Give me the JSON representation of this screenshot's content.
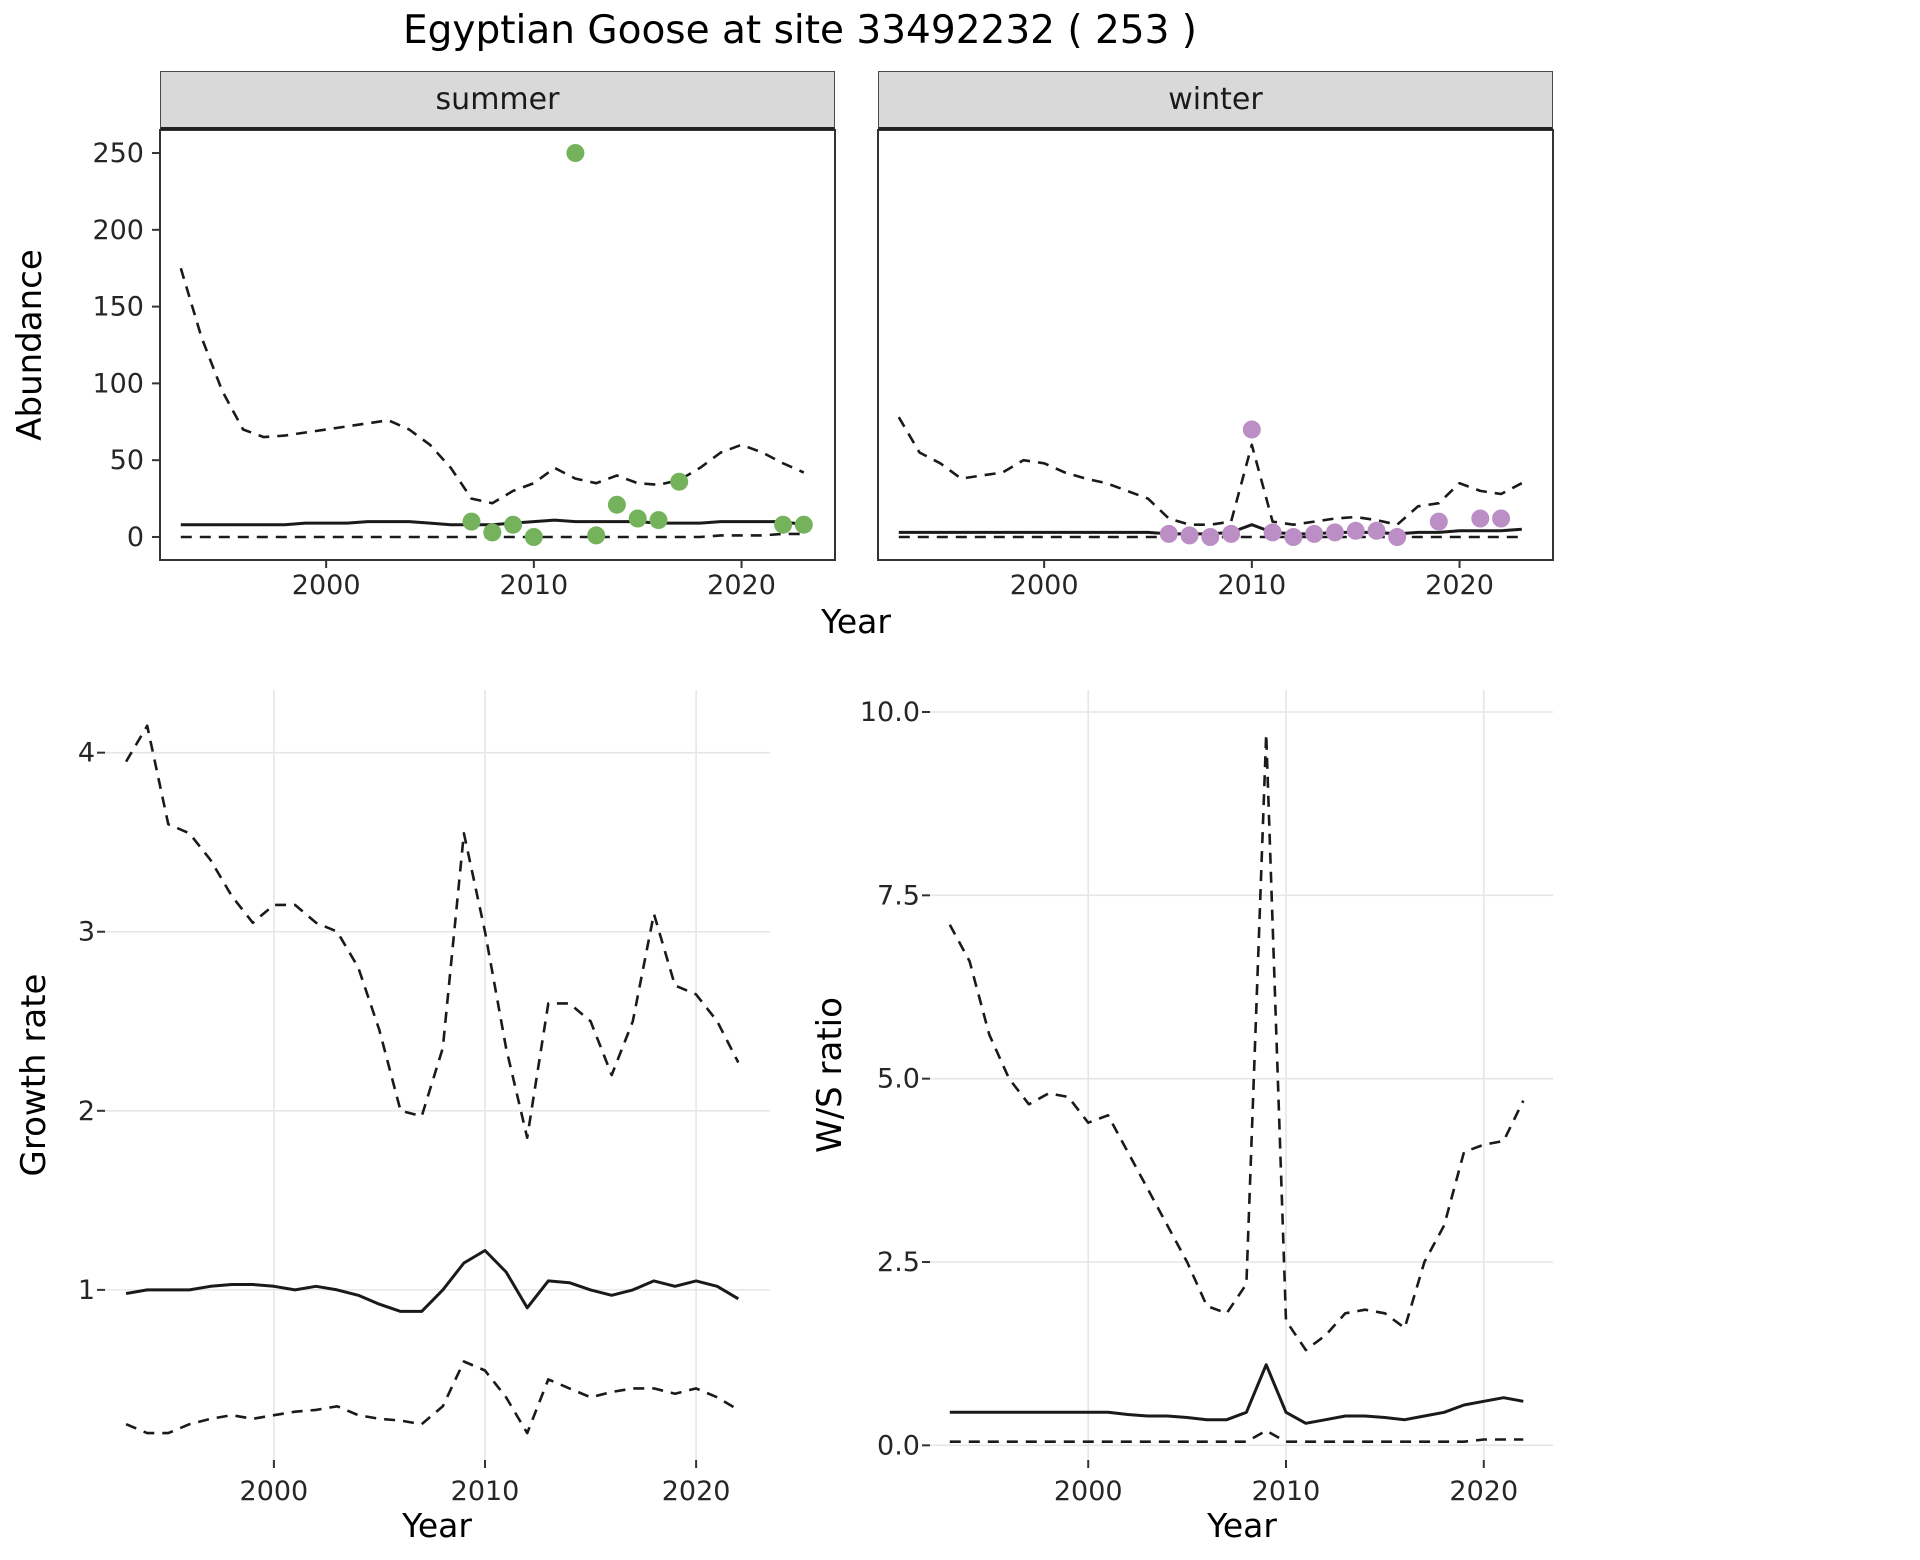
{
  "labels": {
    "title": "Egyptian Goose at site 33492232 ( 253 )",
    "abundance_ylab": "Abundance",
    "top_xlab": "Year",
    "growth_ylab": "Growth rate",
    "growth_xlab": "Year",
    "ws_ylab": "W/S ratio",
    "ws_xlab": "Year",
    "facet_summer": "summer",
    "facet_winter": "winter"
  },
  "colors": {
    "summer_points": "#74B35C",
    "winter_points": "#BB8FC6",
    "line": "#1A1A1A",
    "strip_bg": "#D9D9D9",
    "grid": "#E6E6E6"
  },
  "chart_data": [
    {
      "id": "summer_abundance",
      "type": "line",
      "facet": "summer",
      "title": "Egyptian Goose at site 33492232 ( 253 )",
      "xlabel": "Year",
      "ylabel": "Abundance",
      "xlim": [
        1992,
        2024.5
      ],
      "ylim": [
        -15,
        265
      ],
      "xticks": [
        2000,
        2010,
        2020
      ],
      "xtick_labels": [
        "2000",
        "2010",
        "2020"
      ],
      "yticks": [
        0,
        50,
        100,
        150,
        200,
        250
      ],
      "ytick_labels": [
        "0",
        "50",
        "100",
        "150",
        "200",
        "250"
      ],
      "grid": false,
      "x": [
        1993,
        1994,
        1995,
        1996,
        1997,
        1998,
        1999,
        2000,
        2001,
        2002,
        2003,
        2004,
        2005,
        2006,
        2007,
        2008,
        2009,
        2010,
        2011,
        2012,
        2013,
        2014,
        2015,
        2016,
        2017,
        2018,
        2019,
        2020,
        2021,
        2022,
        2023
      ],
      "series": [
        {
          "name": "upper_ci",
          "style": "dashed",
          "values": [
            175,
            130,
            95,
            70,
            65,
            66,
            68,
            70,
            72,
            74,
            76,
            70,
            60,
            45,
            25,
            22,
            30,
            35,
            45,
            38,
            35,
            40,
            35,
            34,
            37,
            45,
            55,
            60,
            55,
            48,
            42
          ]
        },
        {
          "name": "median",
          "style": "solid",
          "values": [
            8,
            8,
            8,
            8,
            8,
            8,
            9,
            9,
            9,
            10,
            10,
            10,
            9,
            8,
            8,
            8,
            9,
            10,
            11,
            10,
            10,
            10,
            10,
            9,
            9,
            9,
            10,
            10,
            10,
            10,
            8
          ]
        },
        {
          "name": "lower_ci",
          "style": "dashed",
          "values": [
            0,
            0,
            0,
            0,
            0,
            0,
            0,
            0,
            0,
            0,
            0,
            0,
            0,
            0,
            0,
            0,
            0,
            0,
            0,
            0,
            0,
            0,
            0,
            0,
            0,
            0,
            1,
            1,
            1,
            2,
            2
          ]
        }
      ],
      "points": {
        "name": "observed_counts",
        "color": "#74B35C",
        "x": [
          2007,
          2008,
          2009,
          2010,
          2012,
          2013,
          2014,
          2015,
          2016,
          2017,
          2022,
          2023
        ],
        "y": [
          10,
          3,
          8,
          0,
          250,
          1,
          21,
          12,
          11,
          36,
          8,
          8
        ]
      }
    },
    {
      "id": "winter_abundance",
      "type": "line",
      "facet": "winter",
      "xlabel": "Year",
      "ylabel": "Abundance",
      "xlim": [
        1992,
        2024.5
      ],
      "ylim": [
        -15,
        265
      ],
      "xticks": [
        2000,
        2010,
        2020
      ],
      "xtick_labels": [
        "2000",
        "2010",
        "2020"
      ],
      "yticks": [
        0,
        50,
        100,
        150,
        200,
        250
      ],
      "ytick_labels": [
        "0",
        "50",
        "100",
        "150",
        "200",
        "250"
      ],
      "grid": false,
      "x": [
        1993,
        1994,
        1995,
        1996,
        1997,
        1998,
        1999,
        2000,
        2001,
        2002,
        2003,
        2004,
        2005,
        2006,
        2007,
        2008,
        2009,
        2010,
        2011,
        2012,
        2013,
        2014,
        2015,
        2016,
        2017,
        2018,
        2019,
        2020,
        2021,
        2022,
        2023
      ],
      "series": [
        {
          "name": "upper_ci",
          "style": "dashed",
          "values": [
            78,
            55,
            48,
            38,
            40,
            42,
            50,
            48,
            42,
            38,
            35,
            30,
            25,
            12,
            8,
            8,
            10,
            60,
            10,
            8,
            10,
            12,
            13,
            11,
            8,
            20,
            22,
            35,
            30,
            28,
            35
          ]
        },
        {
          "name": "median",
          "style": "solid",
          "values": [
            3,
            3,
            3,
            3,
            3,
            3,
            3,
            3,
            3,
            3,
            3,
            3,
            3,
            2,
            2,
            2,
            3,
            8,
            3,
            2,
            2,
            3,
            3,
            3,
            2,
            3,
            3,
            4,
            4,
            4,
            5
          ]
        },
        {
          "name": "lower_ci",
          "style": "dashed",
          "values": [
            0,
            0,
            0,
            0,
            0,
            0,
            0,
            0,
            0,
            0,
            0,
            0,
            0,
            0,
            0,
            0,
            0,
            0,
            0,
            0,
            0,
            0,
            0,
            0,
            0,
            0,
            0,
            0,
            0,
            0,
            0
          ]
        }
      ],
      "points": {
        "name": "observed_counts",
        "color": "#BB8FC6",
        "x": [
          2006,
          2007,
          2008,
          2009,
          2010,
          2011,
          2012,
          2013,
          2014,
          2015,
          2016,
          2017,
          2019,
          2021,
          2022
        ],
        "y": [
          2,
          1,
          0,
          2,
          70,
          3,
          0,
          2,
          3,
          4,
          4,
          0,
          10,
          12,
          12
        ]
      }
    },
    {
      "id": "growth_rate",
      "type": "line",
      "xlabel": "Year",
      "ylabel": "Growth rate",
      "xlim": [
        1992,
        2023.5
      ],
      "ylim": [
        0.05,
        4.35
      ],
      "xticks": [
        2000,
        2010,
        2020
      ],
      "xtick_labels": [
        "2000",
        "2010",
        "2020"
      ],
      "yticks": [
        1,
        2,
        3,
        4
      ],
      "ytick_labels": [
        "1",
        "2",
        "3",
        "4"
      ],
      "grid": true,
      "x": [
        1993,
        1994,
        1995,
        1996,
        1997,
        1998,
        1999,
        2000,
        2001,
        2002,
        2003,
        2004,
        2005,
        2006,
        2007,
        2008,
        2009,
        2010,
        2011,
        2012,
        2013,
        2014,
        2015,
        2016,
        2017,
        2018,
        2019,
        2020,
        2021,
        2022
      ],
      "series": [
        {
          "name": "upper_ci",
          "style": "dashed",
          "values": [
            3.95,
            4.15,
            3.6,
            3.55,
            3.4,
            3.2,
            3.05,
            3.15,
            3.15,
            3.05,
            3.0,
            2.8,
            2.45,
            2.0,
            1.97,
            2.35,
            3.55,
            3.0,
            2.35,
            1.85,
            2.6,
            2.6,
            2.5,
            2.2,
            2.5,
            3.1,
            2.7,
            2.65,
            2.5,
            2.27
          ]
        },
        {
          "name": "median",
          "style": "solid",
          "values": [
            0.98,
            1.0,
            1.0,
            1.0,
            1.02,
            1.03,
            1.03,
            1.02,
            1.0,
            1.02,
            1.0,
            0.97,
            0.92,
            0.88,
            0.88,
            1.0,
            1.15,
            1.22,
            1.1,
            0.9,
            1.05,
            1.04,
            1.0,
            0.97,
            1.0,
            1.05,
            1.02,
            1.05,
            1.02,
            0.95
          ]
        },
        {
          "name": "lower_ci",
          "style": "dashed",
          "values": [
            0.25,
            0.2,
            0.2,
            0.25,
            0.28,
            0.3,
            0.28,
            0.3,
            0.32,
            0.33,
            0.35,
            0.3,
            0.28,
            0.27,
            0.25,
            0.35,
            0.6,
            0.55,
            0.4,
            0.2,
            0.5,
            0.45,
            0.4,
            0.43,
            0.45,
            0.45,
            0.42,
            0.45,
            0.4,
            0.33
          ]
        }
      ]
    },
    {
      "id": "ws_ratio",
      "type": "line",
      "xlabel": "Year",
      "ylabel": "W/S ratio",
      "xlim": [
        1992,
        2023.5
      ],
      "ylim": [
        -0.2,
        10.3
      ],
      "xticks": [
        2000,
        2010,
        2020
      ],
      "xtick_labels": [
        "2000",
        "2010",
        "2020"
      ],
      "yticks": [
        0,
        2.5,
        5,
        7.5,
        10
      ],
      "ytick_labels": [
        "0.0",
        "2.5",
        "5.0",
        "7.5",
        "10.0"
      ],
      "grid": true,
      "x": [
        1993,
        1994,
        1995,
        1996,
        1997,
        1998,
        1999,
        2000,
        2001,
        2002,
        2003,
        2004,
        2005,
        2006,
        2007,
        2008,
        2009,
        2010,
        2011,
        2012,
        2013,
        2014,
        2015,
        2016,
        2017,
        2018,
        2019,
        2020,
        2021,
        2022
      ],
      "series": [
        {
          "name": "upper_ci",
          "style": "dashed",
          "values": [
            7.1,
            6.6,
            5.6,
            5.0,
            4.65,
            4.8,
            4.75,
            4.4,
            4.5,
            4.0,
            3.5,
            3.0,
            2.5,
            1.9,
            1.8,
            2.2,
            9.7,
            1.7,
            1.3,
            1.5,
            1.8,
            1.85,
            1.8,
            1.6,
            2.5,
            3.0,
            4.0,
            4.1,
            4.15,
            4.7
          ]
        },
        {
          "name": "median",
          "style": "solid",
          "values": [
            0.45,
            0.45,
            0.45,
            0.45,
            0.45,
            0.45,
            0.45,
            0.45,
            0.45,
            0.42,
            0.4,
            0.4,
            0.38,
            0.35,
            0.35,
            0.45,
            1.1,
            0.45,
            0.3,
            0.35,
            0.4,
            0.4,
            0.38,
            0.35,
            0.4,
            0.45,
            0.55,
            0.6,
            0.65,
            0.6
          ]
        },
        {
          "name": "lower_ci",
          "style": "dashed",
          "values": [
            0.05,
            0.05,
            0.05,
            0.05,
            0.05,
            0.05,
            0.05,
            0.05,
            0.05,
            0.05,
            0.05,
            0.05,
            0.05,
            0.05,
            0.05,
            0.05,
            0.2,
            0.05,
            0.05,
            0.05,
            0.05,
            0.05,
            0.05,
            0.05,
            0.05,
            0.05,
            0.05,
            0.08,
            0.08,
            0.08
          ]
        }
      ]
    }
  ]
}
